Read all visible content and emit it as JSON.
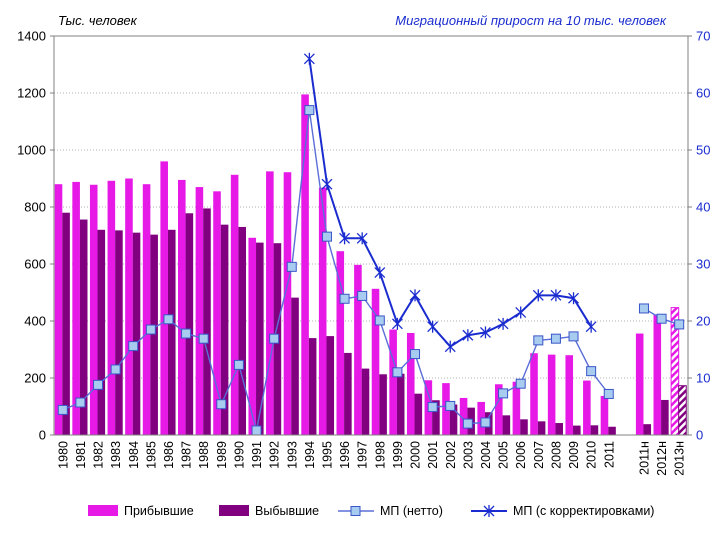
{
  "chart_data": {
    "type": "bar",
    "left_unit_label": "Тыс. человек",
    "right_unit_label": "Миграционный прирост на 10 тыс. человек",
    "categories": [
      "1980",
      "1981",
      "1982",
      "1983",
      "1984",
      "1985",
      "1986",
      "1987",
      "1988",
      "1989",
      "1990",
      "1991",
      "1992",
      "1993",
      "1994",
      "1995",
      "1996",
      "1997",
      "1998",
      "1999",
      "2000",
      "2001",
      "2002",
      "2003",
      "2004",
      "2005",
      "2006",
      "2007",
      "2008",
      "2009",
      "2010",
      "2011",
      "",
      "2011н",
      "2012н",
      "2013н"
    ],
    "ylim_left": [
      0,
      1400
    ],
    "yticks_left": [
      0,
      200,
      400,
      600,
      800,
      1000,
      1200,
      1400
    ],
    "ylim_right": [
      0,
      70
    ],
    "yticks_right": [
      0,
      10,
      20,
      30,
      40,
      50,
      60,
      70
    ],
    "grid": true,
    "legend_position": "bottom",
    "series": [
      {
        "name": "Прибывшие",
        "type": "bar",
        "axis": "left",
        "color": "#e619e6",
        "values": [
          880,
          888,
          878,
          892,
          900,
          880,
          960,
          895,
          870,
          855,
          913,
          692,
          925,
          922,
          1195,
          868,
          645,
          597,
          513,
          370,
          358,
          192,
          182,
          130,
          116,
          178,
          187,
          287,
          282,
          280,
          191,
          137,
          null,
          356,
          423,
          447
        ],
        "forecast_from_index": 35
      },
      {
        "name": "Выбывшие",
        "type": "bar",
        "axis": "left",
        "color": "#800080",
        "values": [
          780,
          756,
          720,
          718,
          710,
          703,
          720,
          778,
          795,
          738,
          730,
          675,
          673,
          482,
          340,
          347,
          288,
          233,
          213,
          215,
          145,
          122,
          107,
          96,
          80,
          69,
          55,
          48,
          42,
          33,
          34,
          29,
          null,
          38,
          123,
          173
        ],
        "forecast_from_index": 35
      },
      {
        "name": "МП (нетто)",
        "type": "line",
        "axis": "right",
        "color": "#5b6ed8",
        "values": [
          4.4,
          5.7,
          8.8,
          11.5,
          15.6,
          18.5,
          20.3,
          17.8,
          16.9,
          5.4,
          12.3,
          0.8,
          16.9,
          29.5,
          57.0,
          34.8,
          23.9,
          24.4,
          20.1,
          11.0,
          14.2,
          4.9,
          5.1,
          2.0,
          2.2,
          7.3,
          9.0,
          16.6,
          16.9,
          17.3,
          11.2,
          7.2,
          null,
          22.2,
          20.4,
          19.4
        ]
      },
      {
        "name": "МП (с корректировками)",
        "type": "line",
        "axis": "right",
        "color": "#1a2ccf",
        "values": [
          null,
          null,
          null,
          null,
          null,
          null,
          null,
          null,
          null,
          null,
          null,
          null,
          null,
          null,
          66.0,
          44.0,
          34.5,
          34.5,
          28.5,
          19.5,
          24.5,
          19.0,
          15.5,
          17.5,
          18.0,
          19.5,
          21.5,
          24.5,
          24.5,
          24.0,
          19.0,
          null,
          null,
          null,
          null,
          null
        ]
      }
    ]
  }
}
